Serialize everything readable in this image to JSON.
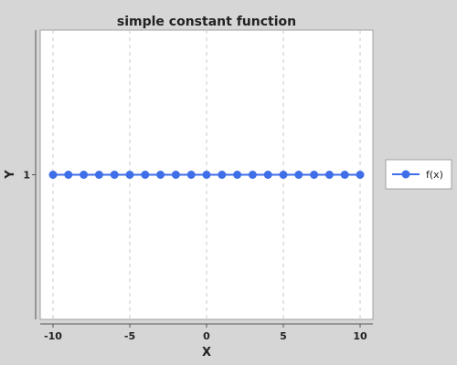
{
  "chart_data": {
    "type": "line",
    "title": "simple constant function",
    "xlabel": "X",
    "ylabel": "Y",
    "xlim": [
      -10,
      10
    ],
    "x_ticks": [
      "-10",
      "-5",
      "0",
      "5",
      "10"
    ],
    "y_ticks": [
      "1"
    ],
    "grid": {
      "vertical": true,
      "horizontal": false
    },
    "legend_position": "right",
    "series": [
      {
        "name": "f(x)",
        "color": "#3e6ee8",
        "x": [
          -10,
          -9,
          -8,
          -7,
          -6,
          -5,
          -4,
          -3,
          -2,
          -1,
          0,
          1,
          2,
          3,
          4,
          5,
          6,
          7,
          8,
          9,
          10
        ],
        "y": [
          1,
          1,
          1,
          1,
          1,
          1,
          1,
          1,
          1,
          1,
          1,
          1,
          1,
          1,
          1,
          1,
          1,
          1,
          1,
          1,
          1
        ]
      }
    ]
  },
  "colors": {
    "background": "#d6d6d6",
    "plot_background": "#ffffff",
    "grid": "#c8c8c8",
    "axis": "#555555",
    "text": "#222222"
  }
}
